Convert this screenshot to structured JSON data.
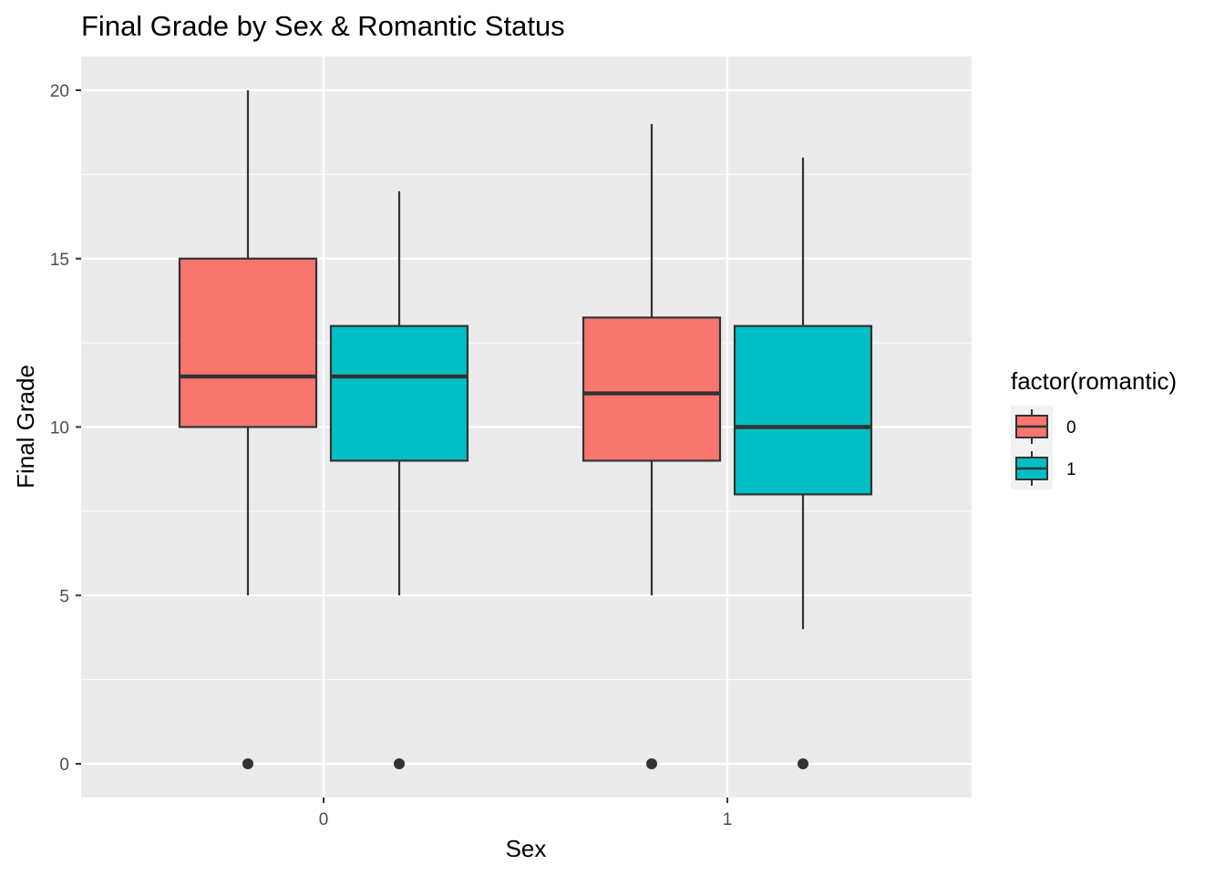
{
  "chart_data": {
    "type": "boxplot",
    "title": "Final Grade by Sex & Romantic Status",
    "xlabel": "Sex",
    "ylabel": "Final Grade",
    "categories": [
      "0",
      "1"
    ],
    "ylim": [
      -1,
      21
    ],
    "y_ticks": [
      0,
      5,
      10,
      15,
      20
    ],
    "grid": true,
    "legend": {
      "title": "factor(romantic)",
      "position": "right",
      "entries": [
        {
          "label": "0",
          "color": "#F8766D"
        },
        {
          "label": "1",
          "color": "#00BFC4"
        }
      ]
    },
    "series": [
      {
        "name": "0",
        "color": "#F8766D",
        "boxes": [
          {
            "category": "0",
            "whisker_low": 5,
            "q1": 10,
            "median": 11.5,
            "q3": 15,
            "whisker_high": 20,
            "outliers": [
              0
            ]
          },
          {
            "category": "1",
            "whisker_low": 5,
            "q1": 9,
            "median": 11,
            "q3": 13.25,
            "whisker_high": 19,
            "outliers": [
              0
            ]
          }
        ]
      },
      {
        "name": "1",
        "color": "#00BFC4",
        "boxes": [
          {
            "category": "0",
            "whisker_low": 5,
            "q1": 9,
            "median": 11.5,
            "q3": 13,
            "whisker_high": 17,
            "outliers": [
              0
            ]
          },
          {
            "category": "1",
            "whisker_low": 4,
            "q1": 8,
            "median": 10,
            "q3": 13,
            "whisker_high": 18,
            "outliers": [
              0
            ]
          }
        ]
      }
    ]
  },
  "colors": {
    "panel_background": "#EBEBEB",
    "grid": "#FFFFFF",
    "box_outline": "#333333"
  }
}
